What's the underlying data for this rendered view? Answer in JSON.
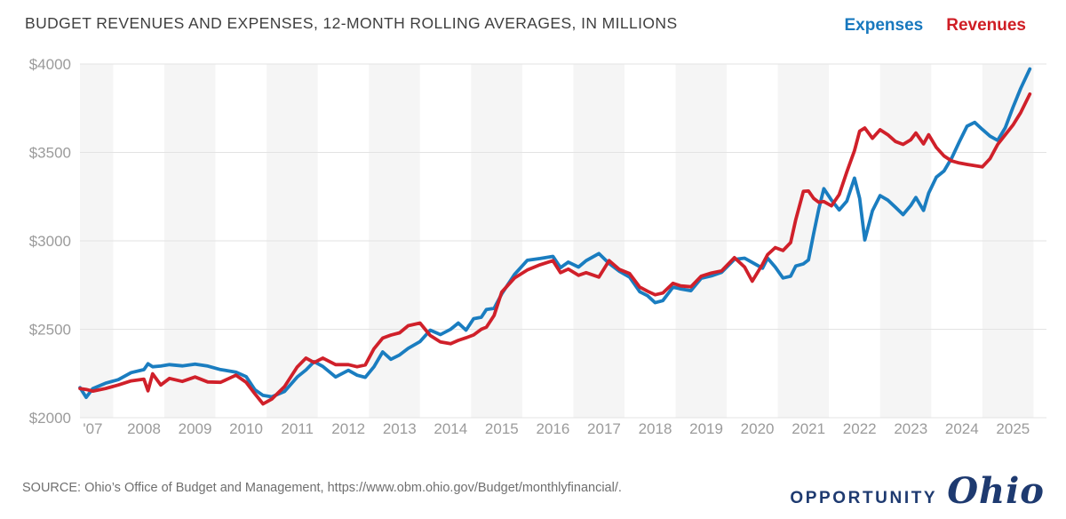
{
  "header": {
    "title": "BUDGET REVENUES AND EXPENSES, 12-MONTH ROLLING AVERAGES, IN MILLIONS",
    "legend": [
      {
        "label": "Expenses",
        "color": "#1878be"
      },
      {
        "label": "Revenues",
        "color": "#cf1d24"
      }
    ]
  },
  "footer": {
    "source": "SOURCE: Ohio’s Office of Budget and Management, https://www.obm.ohio.gov/Budget/monthlyfinancial/.",
    "logo": {
      "word": "OPPORTUNITY",
      "script": "Ohio",
      "color": "#1e3a70"
    }
  },
  "chart_data": {
    "type": "line",
    "title": "BUDGET REVENUES AND EXPENSES, 12-MONTH ROLLING AVERAGES, IN MILLIONS",
    "units": "millions of dollars, 12-month rolling average",
    "legend_position": "top-right",
    "grid": "horizontal",
    "ylim": [
      2000,
      4000
    ],
    "xlim": [
      2006.75,
      2025.67
    ],
    "ylabel": "",
    "xlabel": "",
    "y_ticks": [
      {
        "value": 2000,
        "label": "$2000"
      },
      {
        "value": 2500,
        "label": "$2500"
      },
      {
        "value": 3000,
        "label": "$3000"
      },
      {
        "value": 3500,
        "label": "$3500"
      },
      {
        "value": 4000,
        "label": "$4000"
      }
    ],
    "x_ticks": [
      {
        "value": 2007,
        "label": "'07"
      },
      {
        "value": 2008,
        "label": "2008"
      },
      {
        "value": 2009,
        "label": "2009"
      },
      {
        "value": 2010,
        "label": "2010"
      },
      {
        "value": 2011,
        "label": "2011"
      },
      {
        "value": 2012,
        "label": "2012"
      },
      {
        "value": 2013,
        "label": "2013"
      },
      {
        "value": 2014,
        "label": "2014"
      },
      {
        "value": 2015,
        "label": "2015"
      },
      {
        "value": 2016,
        "label": "2016"
      },
      {
        "value": 2017,
        "label": "2017"
      },
      {
        "value": 2018,
        "label": "2018"
      },
      {
        "value": 2019,
        "label": "2019"
      },
      {
        "value": 2020,
        "label": "2020"
      },
      {
        "value": 2021,
        "label": "2021"
      },
      {
        "value": 2022,
        "label": "2022"
      },
      {
        "value": 2023,
        "label": "2023"
      },
      {
        "value": 2024,
        "label": "2024"
      },
      {
        "value": 2025,
        "label": "2025"
      }
    ],
    "bands": {
      "shaded_fiscal_years": "odd years (FY2007, FY2009, ... FY2025)",
      "color": "#f5f5f5"
    },
    "x": [
      2006.75,
      2006.87,
      2007.0,
      2007.25,
      2007.5,
      2007.75,
      2008.0,
      2008.08,
      2008.17,
      2008.33,
      2008.5,
      2008.75,
      2009.0,
      2009.25,
      2009.5,
      2009.8,
      2010.0,
      2010.17,
      2010.33,
      2010.5,
      2010.75,
      2011.0,
      2011.17,
      2011.33,
      2011.5,
      2011.75,
      2012.0,
      2012.17,
      2012.33,
      2012.5,
      2012.67,
      2012.83,
      2013.0,
      2013.17,
      2013.4,
      2013.6,
      2013.8,
      2014.0,
      2014.15,
      2014.3,
      2014.45,
      2014.6,
      2014.7,
      2014.85,
      2015.0,
      2015.25,
      2015.5,
      2015.75,
      2016.0,
      2016.15,
      2016.3,
      2016.5,
      2016.65,
      2016.9,
      2017.1,
      2017.3,
      2017.5,
      2017.7,
      2017.85,
      2018.0,
      2018.15,
      2018.35,
      2018.5,
      2018.7,
      2018.9,
      2019.1,
      2019.3,
      2019.55,
      2019.75,
      2019.9,
      2020.1,
      2020.2,
      2020.35,
      2020.5,
      2020.65,
      2020.75,
      2020.9,
      2021.0,
      2021.1,
      2021.2,
      2021.3,
      2021.45,
      2021.6,
      2021.75,
      2021.9,
      2022.0,
      2022.1,
      2022.25,
      2022.4,
      2022.55,
      2022.7,
      2022.85,
      2023.0,
      2023.1,
      2023.25,
      2023.35,
      2023.5,
      2023.65,
      2023.8,
      2023.95,
      2024.1,
      2024.25,
      2024.4,
      2024.55,
      2024.7,
      2024.85,
      2025.0,
      2025.15,
      2025.33
    ],
    "series": [
      {
        "name": "Expenses",
        "color": "#1a7dc0",
        "values": [
          2170,
          2115,
          2165,
          2195,
          2215,
          2255,
          2272,
          2305,
          2288,
          2292,
          2300,
          2293,
          2303,
          2292,
          2272,
          2258,
          2232,
          2158,
          2126,
          2118,
          2148,
          2230,
          2270,
          2317,
          2290,
          2230,
          2268,
          2240,
          2228,
          2288,
          2372,
          2330,
          2355,
          2392,
          2430,
          2495,
          2470,
          2500,
          2535,
          2495,
          2560,
          2568,
          2612,
          2618,
          2700,
          2810,
          2890,
          2900,
          2912,
          2848,
          2880,
          2852,
          2888,
          2928,
          2872,
          2828,
          2795,
          2712,
          2690,
          2650,
          2662,
          2738,
          2728,
          2718,
          2788,
          2802,
          2822,
          2895,
          2902,
          2878,
          2845,
          2902,
          2852,
          2790,
          2800,
          2858,
          2870,
          2892,
          3040,
          3180,
          3295,
          3230,
          3175,
          3225,
          3355,
          3240,
          3005,
          3170,
          3256,
          3230,
          3190,
          3148,
          3200,
          3245,
          3172,
          3270,
          3360,
          3395,
          3468,
          3560,
          3648,
          3670,
          3630,
          3592,
          3568,
          3640,
          3755,
          3862,
          3972
        ]
      },
      {
        "name": "Revenues",
        "color": "#d0202a",
        "values": [
          2165,
          2160,
          2150,
          2165,
          2185,
          2208,
          2218,
          2152,
          2248,
          2185,
          2222,
          2205,
          2230,
          2202,
          2200,
          2240,
          2200,
          2135,
          2078,
          2105,
          2176,
          2287,
          2337,
          2312,
          2337,
          2300,
          2300,
          2288,
          2298,
          2390,
          2450,
          2467,
          2480,
          2520,
          2535,
          2465,
          2428,
          2418,
          2437,
          2452,
          2468,
          2500,
          2512,
          2578,
          2710,
          2790,
          2835,
          2865,
          2888,
          2820,
          2840,
          2805,
          2820,
          2795,
          2888,
          2838,
          2815,
          2738,
          2715,
          2695,
          2705,
          2760,
          2745,
          2740,
          2800,
          2818,
          2830,
          2905,
          2852,
          2772,
          2868,
          2922,
          2962,
          2945,
          2990,
          3120,
          3280,
          3282,
          3240,
          3218,
          3222,
          3198,
          3262,
          3390,
          3510,
          3620,
          3638,
          3580,
          3628,
          3600,
          3562,
          3545,
          3572,
          3610,
          3548,
          3600,
          3528,
          3480,
          3452,
          3440,
          3432,
          3425,
          3418,
          3465,
          3545,
          3600,
          3655,
          3725,
          3830
        ]
      }
    ]
  }
}
